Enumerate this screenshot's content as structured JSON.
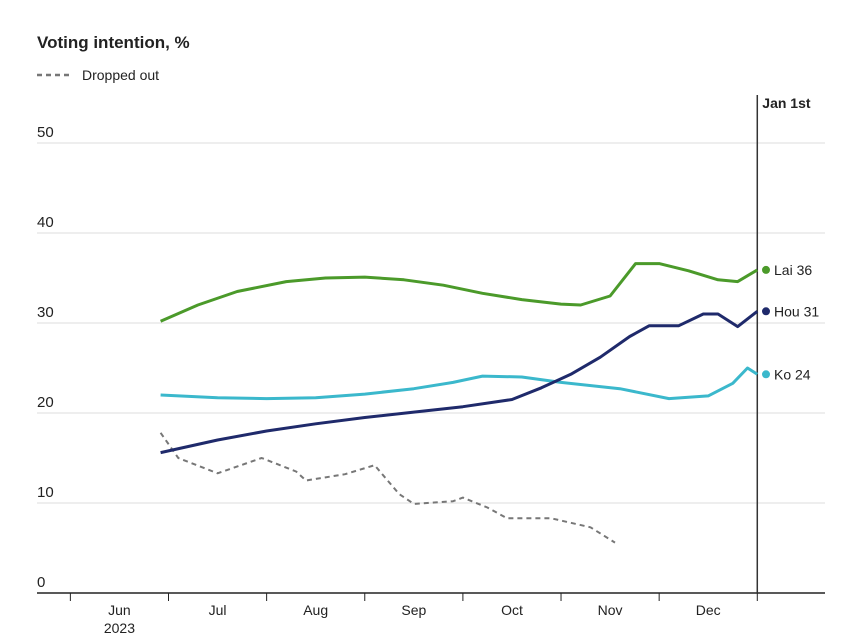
{
  "chart_data": {
    "type": "line",
    "title": "Voting intention, %",
    "xlim": [
      5.66,
      13.69
    ],
    "ylim": [
      0,
      50
    ],
    "yticks": [
      0,
      10,
      20,
      30,
      40,
      50
    ],
    "grid": true,
    "x_boundaries": [
      6,
      7,
      8,
      9,
      10,
      11,
      12,
      13
    ],
    "xticks": [
      {
        "value": 6.5,
        "label": "Jun"
      },
      {
        "value": 7.5,
        "label": "Jul"
      },
      {
        "value": 8.5,
        "label": "Aug"
      },
      {
        "value": 9.5,
        "label": "Sep"
      },
      {
        "value": 10.5,
        "label": "Oct"
      },
      {
        "value": 11.5,
        "label": "Nov"
      },
      {
        "value": 12.5,
        "label": "Dec"
      }
    ],
    "year_label": "2023",
    "marker_line": {
      "x": 13,
      "label": "Jan 1st"
    },
    "series": [
      {
        "name": "Lai",
        "end_label": "Lai 36",
        "color": "#4b9a2a",
        "x": [
          6.92,
          7.3,
          7.7,
          8.2,
          8.6,
          9.0,
          9.4,
          9.8,
          10.2,
          10.6,
          11.0,
          11.2,
          11.5,
          11.76,
          12.0,
          12.3,
          12.6,
          12.8,
          13.0
        ],
        "values": [
          30.2,
          32.0,
          33.5,
          34.6,
          35.0,
          35.1,
          34.8,
          34.2,
          33.3,
          32.6,
          32.1,
          32.0,
          33.0,
          36.6,
          36.6,
          35.8,
          34.8,
          34.6,
          35.9
        ]
      },
      {
        "name": "Hou",
        "end_label": "Hou 31",
        "color": "#1f2a6b",
        "x": [
          6.92,
          7.5,
          8.0,
          8.5,
          9.0,
          9.5,
          10.0,
          10.5,
          10.8,
          11.1,
          11.4,
          11.7,
          11.9,
          12.2,
          12.45,
          12.6,
          12.8,
          13.0
        ],
        "values": [
          15.6,
          17.0,
          18.0,
          18.8,
          19.5,
          20.1,
          20.7,
          21.5,
          22.8,
          24.3,
          26.2,
          28.5,
          29.7,
          29.7,
          31.0,
          31.0,
          29.6,
          31.3
        ]
      },
      {
        "name": "Ko",
        "end_label": "Ko 24",
        "color": "#3bb8cc",
        "x": [
          6.92,
          7.5,
          8.0,
          8.5,
          9.0,
          9.5,
          9.9,
          10.2,
          10.6,
          11.0,
          11.6,
          12.1,
          12.5,
          12.75,
          12.9,
          13.0
        ],
        "values": [
          22.0,
          21.7,
          21.6,
          21.7,
          22.1,
          22.7,
          23.4,
          24.1,
          24.0,
          23.4,
          22.7,
          21.6,
          21.9,
          23.3,
          25.0,
          24.3
        ]
      },
      {
        "name": "Dropped out",
        "color": "#777777",
        "dashed": true,
        "x": [
          6.92,
          7.1,
          7.5,
          7.95,
          8.3,
          8.4,
          8.8,
          9.1,
          9.35,
          9.5,
          9.9,
          10.0,
          10.25,
          10.45,
          10.9,
          11.3,
          11.55
        ],
        "values": [
          17.8,
          15.0,
          13.3,
          15.0,
          13.5,
          12.5,
          13.2,
          14.2,
          11.0,
          9.9,
          10.2,
          10.6,
          9.5,
          8.3,
          8.3,
          7.3,
          5.6
        ]
      }
    ]
  }
}
